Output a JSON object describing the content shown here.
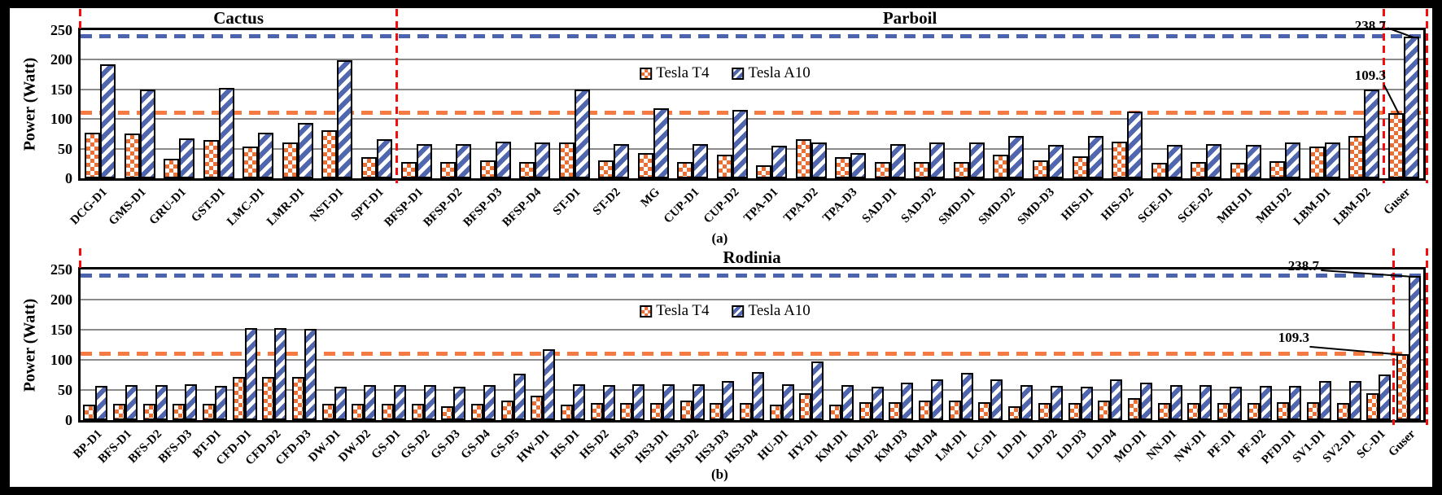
{
  "figure": {
    "background": "#000000",
    "panel_count": 2
  },
  "chart_data": [
    {
      "type": "bar",
      "caption": "(a)",
      "ylabel": "Power (Watt)",
      "ylim": [
        0,
        250
      ],
      "yticks": [
        0,
        50,
        100,
        150,
        200,
        250
      ],
      "grid": "horizontal",
      "legend_position": "inside-top-center",
      "sections": [
        {
          "label": "Cactus",
          "from": 0,
          "to": 7
        },
        {
          "label": "Parboil",
          "from": 8,
          "to": 33
        }
      ],
      "categories": [
        "DCG-D1",
        "GMS-D1",
        "GRU-D1",
        "GST-D1",
        "LMC-D1",
        "LMR-D1",
        "NST-D1",
        "SPT-D1",
        "BFSP-D1",
        "BFSP-D2",
        "BFSP-D3",
        "BFSP-D4",
        "ST-D1",
        "ST-D2",
        "MG",
        "CUP-D1",
        "CUP-D2",
        "TPA-D1",
        "TPA-D2",
        "TPA-D3",
        "SAD-D1",
        "SAD-D2",
        "SMD-D1",
        "SMD-D2",
        "SMD-D3",
        "HIS-D1",
        "HIS-D2",
        "SGE-D1",
        "SGE-D2",
        "MRI-D1",
        "MRI-D2",
        "LBM-D1",
        "LBM-D2",
        "Guser"
      ],
      "series": [
        {
          "name": "Tesla T4",
          "color": "#EC6E33",
          "pattern": "checker",
          "values": [
            77,
            76,
            33,
            64,
            53,
            60,
            81,
            36,
            28,
            27,
            30,
            28,
            60,
            30,
            43,
            28,
            40,
            22,
            66,
            36,
            28,
            28,
            28,
            40,
            30,
            37,
            62,
            26,
            28,
            26,
            29,
            53,
            71,
            109.3
          ]
        },
        {
          "name": "Tesla A10",
          "color": "#5066AE",
          "pattern": "diagonal-stripe",
          "values": [
            192,
            150,
            67,
            152,
            77,
            93,
            199,
            66,
            58,
            58,
            62,
            60,
            150,
            58,
            118,
            58,
            116,
            55,
            60,
            43,
            58,
            60,
            60,
            72,
            57,
            71,
            112,
            57,
            58,
            57,
            60,
            60,
            150,
            238.7
          ]
        }
      ],
      "hlines": [
        {
          "value": 238.7,
          "color": "#4C63AE",
          "style": "dashed"
        },
        {
          "value": 109.3,
          "color": "#F57B43",
          "style": "dashed"
        }
      ],
      "red_dividers_at_category_index": [
        0,
        8,
        33,
        34
      ],
      "annotations": [
        {
          "text": "238.7",
          "points_to": "Guser Tesla A10 bar"
        },
        {
          "text": "109.3",
          "points_to": "Guser Tesla T4 bar"
        }
      ]
    },
    {
      "type": "bar",
      "caption": "(b)",
      "ylabel": "Power (Watt)",
      "ylim": [
        0,
        250
      ],
      "yticks": [
        0,
        50,
        100,
        150,
        200,
        250
      ],
      "grid": "horizontal",
      "legend_position": "inside-top-center",
      "sections": [
        {
          "label": "Rodinia",
          "from": 0,
          "to": 44
        }
      ],
      "categories": [
        "BP-D1",
        "BFS-D1",
        "BFS-D2",
        "BFS-D3",
        "BT-D1",
        "CFD-D1",
        "CFD-D2",
        "CFD-D3",
        "DW-D1",
        "DW-D2",
        "GS-D1",
        "GS-D2",
        "GS-D3",
        "GS-D4",
        "GS-D5",
        "HW-D1",
        "HS-D1",
        "HS-D2",
        "HS-D3",
        "HS3-D1",
        "HS3-D2",
        "HS3-D3",
        "HS3-D4",
        "HU-D1",
        "HY-D1",
        "KM-D1",
        "KM-D2",
        "KM-D3",
        "KM-D4",
        "LM-D1",
        "LC-D1",
        "LD-D1",
        "LD-D2",
        "LD-D3",
        "LD-D4",
        "MO-D1",
        "NN-D1",
        "NW-D1",
        "PF-D1",
        "PF-D2",
        "PFD-D1",
        "SV1-D1",
        "SV2-D1",
        "SC-D1",
        "Guser"
      ],
      "series": [
        {
          "name": "Tesla T4",
          "color": "#EC6E33",
          "pattern": "checker",
          "values": [
            26,
            27,
            27,
            27,
            27,
            71,
            72,
            72,
            27,
            27,
            27,
            27,
            23,
            27,
            32,
            40,
            25,
            28,
            28,
            28,
            33,
            28,
            28,
            26,
            44,
            26,
            30,
            30,
            33,
            32,
            30,
            23,
            28,
            28,
            33,
            36,
            28,
            28,
            28,
            28,
            30,
            30,
            28,
            45,
            109.3
          ]
        },
        {
          "name": "Tesla A10",
          "color": "#5066AE",
          "pattern": "diagonal-stripe",
          "values": [
            57,
            58,
            58,
            60,
            57,
            153,
            153,
            151,
            56,
            58,
            58,
            58,
            56,
            58,
            77,
            117,
            59,
            58,
            59,
            59,
            60,
            65,
            80,
            60,
            97,
            58,
            56,
            62,
            68,
            78,
            68,
            58,
            57,
            56,
            67,
            62,
            58,
            58,
            55,
            57,
            57,
            65,
            65,
            75,
            238.7
          ]
        }
      ],
      "hlines": [
        {
          "value": 238.7,
          "color": "#4C63AE",
          "style": "dashed"
        },
        {
          "value": 109.3,
          "color": "#F57B43",
          "style": "dashed"
        }
      ],
      "red_dividers_at_category_index": [
        0,
        44,
        45
      ],
      "annotations": [
        {
          "text": "238.7",
          "points_to": "Guser Tesla A10 bar"
        },
        {
          "text": "109.3",
          "points_to": "Guser Tesla T4 bar"
        }
      ]
    }
  ]
}
